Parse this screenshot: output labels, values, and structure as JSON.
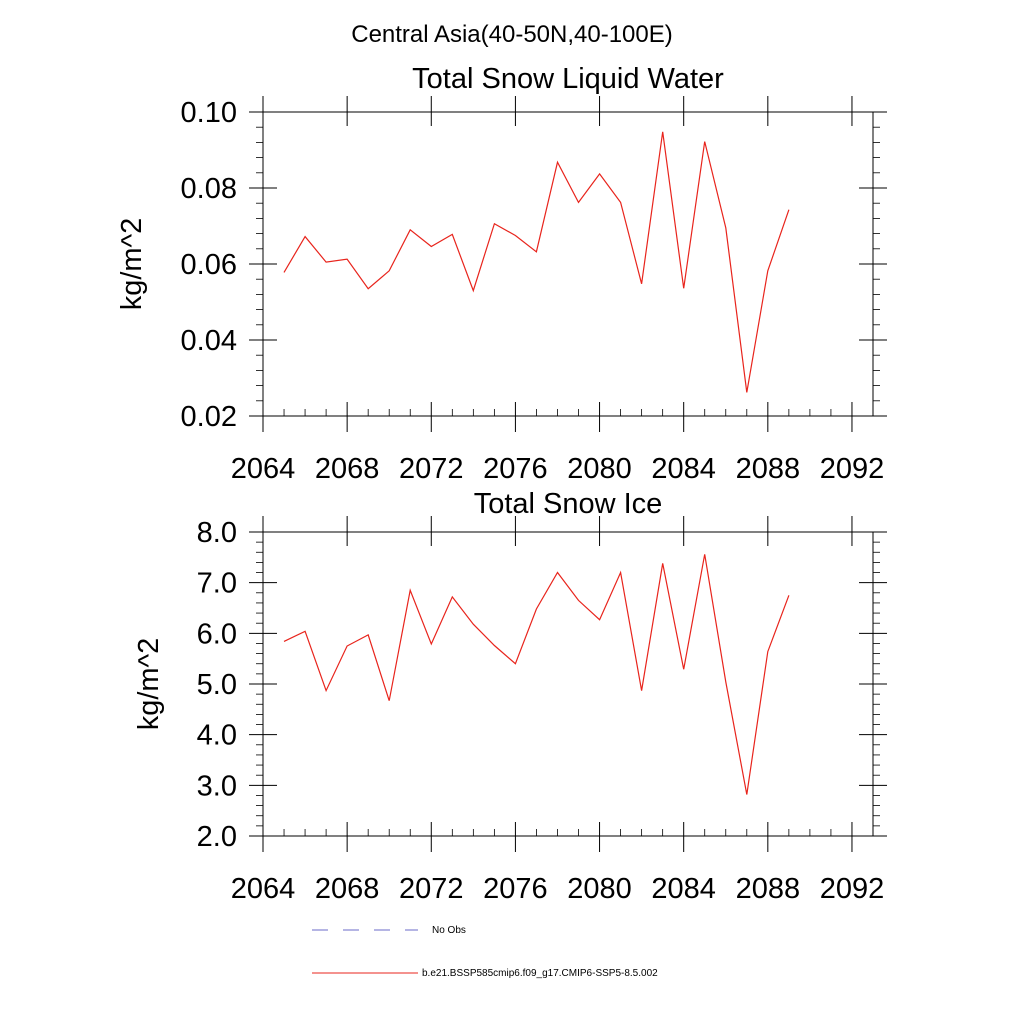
{
  "figure": {
    "title": "Central Asia(40-50N,40-100E)",
    "legend": [
      {
        "label": "No Obs",
        "color": "#6b6bc8",
        "style": "dashed"
      },
      {
        "label": "b.e21.BSSP585cmip6.f09_g17.CMIP6-SSP5-8.5.002",
        "color": "#e8241c",
        "style": "solid"
      }
    ]
  },
  "chart_data": [
    {
      "type": "line",
      "title": "Total Snow Liquid Water",
      "xlabel": "",
      "ylabel": "kg/m^2",
      "xlim": [
        2064,
        2093
      ],
      "ylim": [
        0.02,
        0.1
      ],
      "xticks": [
        2064,
        2068,
        2072,
        2076,
        2080,
        2084,
        2088,
        2092
      ],
      "xtick_labels": [
        "2064",
        "2068",
        "2072",
        "2076",
        "2080",
        "2084",
        "2088",
        "2092"
      ],
      "yticks": [
        0.02,
        0.04,
        0.06,
        0.08,
        0.1
      ],
      "ytick_labels": [
        "0.02",
        "0.04",
        "0.06",
        "0.08",
        "0.10"
      ],
      "grid": false,
      "series": [
        {
          "color": "#e8241c",
          "x": [
            2065,
            2066,
            2067,
            2068,
            2069,
            2070,
            2071,
            2072,
            2073,
            2074,
            2075,
            2076,
            2077,
            2078,
            2079,
            2080,
            2081,
            2082,
            2083,
            2084,
            2085,
            2086,
            2087,
            2088,
            2089
          ],
          "y": [
            0.0578,
            0.0672,
            0.0605,
            0.0613,
            0.0535,
            0.0582,
            0.069,
            0.0646,
            0.0678,
            0.053,
            0.0706,
            0.0675,
            0.0632,
            0.0868,
            0.0762,
            0.0837,
            0.0762,
            0.0548,
            0.0948,
            0.0536,
            0.0922,
            0.0695,
            0.0262,
            0.0582,
            0.0743
          ]
        }
      ]
    },
    {
      "type": "line",
      "title": "Total Snow Ice",
      "xlabel": "",
      "ylabel": "kg/m^2",
      "xlim": [
        2064,
        2093
      ],
      "ylim": [
        2.0,
        8.0
      ],
      "xticks": [
        2064,
        2068,
        2072,
        2076,
        2080,
        2084,
        2088,
        2092
      ],
      "xtick_labels": [
        "2064",
        "2068",
        "2072",
        "2076",
        "2080",
        "2084",
        "2088",
        "2092"
      ],
      "yticks": [
        2,
        3,
        4,
        5,
        6,
        7,
        8
      ],
      "ytick_labels": [
        "2.0",
        "3.0",
        "4.0",
        "5.0",
        "6.0",
        "7.0",
        "8.0"
      ],
      "grid": false,
      "series": [
        {
          "color": "#e8241c",
          "x": [
            2065,
            2066,
            2067,
            2068,
            2069,
            2070,
            2071,
            2072,
            2073,
            2074,
            2075,
            2076,
            2077,
            2078,
            2079,
            2080,
            2081,
            2082,
            2083,
            2084,
            2085,
            2086,
            2087,
            2088,
            2089
          ],
          "y": [
            5.84,
            6.04,
            4.87,
            5.75,
            5.97,
            4.67,
            6.85,
            5.79,
            6.72,
            6.18,
            5.76,
            5.4,
            6.48,
            7.2,
            6.65,
            6.27,
            7.2,
            4.87,
            7.38,
            5.29,
            7.56,
            5.04,
            2.82,
            5.64,
            6.75
          ]
        }
      ]
    }
  ]
}
